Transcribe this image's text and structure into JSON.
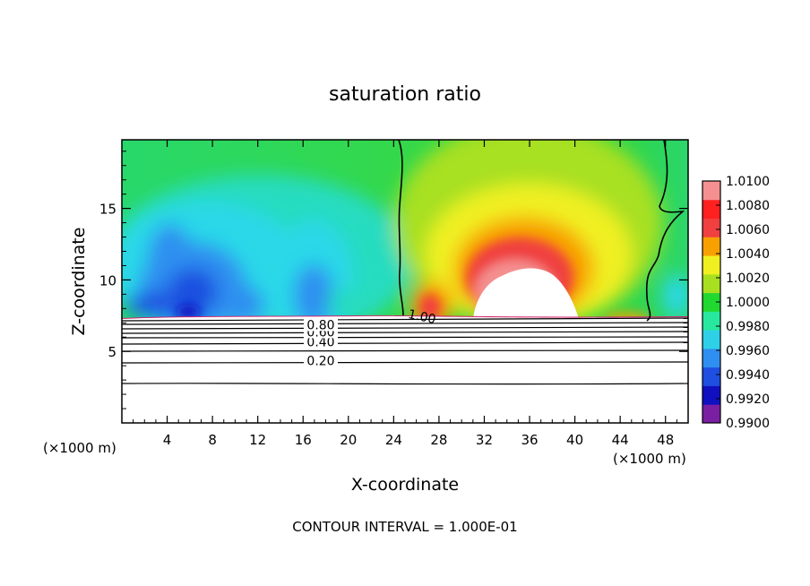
{
  "chart_data": {
    "type": "heatmap",
    "title": "saturation ratio",
    "xlabel": "X-coordinate",
    "ylabel": "Z-coordinate",
    "x_unit_left": "(×1000 m)",
    "x_unit_right": "(×1000 m)",
    "xlim": [
      0,
      50
    ],
    "ylim": [
      0,
      19.8
    ],
    "x_ticks": [
      4,
      8,
      12,
      16,
      20,
      24,
      28,
      32,
      36,
      40,
      44,
      48
    ],
    "y_ticks": [
      5,
      10,
      15
    ],
    "surface_level": 7.3,
    "contour_lines": [
      {
        "level": 0.2,
        "z": 4.3,
        "label": "0.20"
      },
      {
        "level": 0.4,
        "z": 5.6,
        "label": "0.40"
      },
      {
        "level": 0.6,
        "z": 6.3,
        "label": "0.60"
      },
      {
        "level": 0.8,
        "z": 6.8,
        "label": "0.80"
      },
      {
        "level": 1.0,
        "label": "1.00"
      }
    ],
    "unlabeled_contour_z": [
      2.8,
      5.0,
      6.0,
      6.6,
      7.0
    ],
    "colorbar": {
      "min": 0.99,
      "max": 1.01,
      "tick_labels": [
        "1.0100",
        "1.0080",
        "1.0060",
        "1.0040",
        "1.0020",
        "1.0000",
        "0.9980",
        "0.9960",
        "0.9940",
        "0.9920",
        "0.9900"
      ],
      "colors": [
        "#7a1fa2",
        "#1010c0",
        "#1e4fe0",
        "#2f8ff0",
        "#2ed0e8",
        "#28e8a0",
        "#20d830",
        "#a8e020",
        "#f0f020",
        "#f8a000",
        "#f04040",
        "#ff2020",
        "#f49090"
      ]
    },
    "footer": "CONTOUR INTERVAL = 1.000E-01"
  }
}
